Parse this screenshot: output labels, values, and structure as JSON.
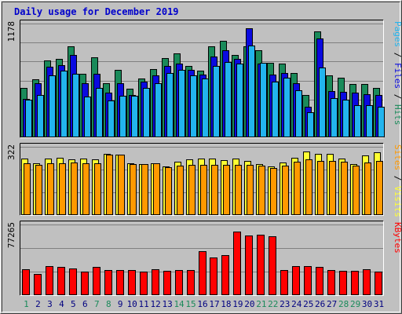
{
  "title": "Daily usage for December 2019",
  "colors": {
    "hits": "#1a8a5a",
    "files": "#0a0ae0",
    "pages": "#22b4ee",
    "visits": "#ffff33",
    "sites": "#ff9900",
    "kbytes": "#ff0000",
    "title": "#0000cc",
    "weekend_label": "#1a8a5a",
    "weekday_label": "#000080",
    "background": "#c0c0c0",
    "plot_bg": "#c0c0c0"
  },
  "x_labels": [
    {
      "day": "1",
      "weekend": true
    },
    {
      "day": "2",
      "weekend": false
    },
    {
      "day": "3",
      "weekend": false
    },
    {
      "day": "4",
      "weekend": false
    },
    {
      "day": "5",
      "weekend": false
    },
    {
      "day": "6",
      "weekend": false
    },
    {
      "day": "7",
      "weekend": true
    },
    {
      "day": "8",
      "weekend": true
    },
    {
      "day": "9",
      "weekend": false
    },
    {
      "day": "10",
      "weekend": false
    },
    {
      "day": "11",
      "weekend": false
    },
    {
      "day": "12",
      "weekend": false
    },
    {
      "day": "13",
      "weekend": false
    },
    {
      "day": "14",
      "weekend": true
    },
    {
      "day": "15",
      "weekend": true
    },
    {
      "day": "16",
      "weekend": false
    },
    {
      "day": "17",
      "weekend": false
    },
    {
      "day": "18",
      "weekend": false
    },
    {
      "day": "19",
      "weekend": false
    },
    {
      "day": "20",
      "weekend": false
    },
    {
      "day": "21",
      "weekend": true
    },
    {
      "day": "22",
      "weekend": true
    },
    {
      "day": "23",
      "weekend": false
    },
    {
      "day": "24",
      "weekend": false
    },
    {
      "day": "25",
      "weekend": false
    },
    {
      "day": "26",
      "weekend": false
    },
    {
      "day": "27",
      "weekend": false
    },
    {
      "day": "28",
      "weekend": true
    },
    {
      "day": "29",
      "weekend": true
    },
    {
      "day": "30",
      "weekend": false
    },
    {
      "day": "31",
      "weekend": false
    }
  ],
  "chart_data": [
    {
      "type": "bar",
      "panel": "hits-files-pages",
      "ymax_label": "1178",
      "ylim": [
        0,
        1178
      ],
      "grid": true,
      "legend": [
        {
          "text": "Pages",
          "color_key": "pages"
        },
        {
          "text": " / ",
          "color_key": null
        },
        {
          "text": "Files",
          "color_key": "files"
        },
        {
          "text": " / ",
          "color_key": null
        },
        {
          "text": "Hits",
          "color_key": "hits"
        }
      ],
      "series": [
        {
          "name": "Hits",
          "color_key": "hits",
          "values": [
            510,
            600,
            800,
            810,
            940,
            660,
            830,
            560,
            700,
            500,
            610,
            710,
            820,
            870,
            740,
            690,
            940,
            1000,
            850,
            940,
            900,
            770,
            760,
            670,
            440,
            1100,
            640,
            620,
            550,
            550,
            510
          ]
        },
        {
          "name": "Files",
          "color_key": "files",
          "values": [
            400,
            560,
            730,
            750,
            850,
            560,
            660,
            460,
            560,
            440,
            580,
            640,
            740,
            760,
            700,
            650,
            840,
            900,
            810,
            1130,
            760,
            650,
            670,
            560,
            320,
            1020,
            480,
            470,
            460,
            450,
            440
          ]
        },
        {
          "name": "Pages",
          "color_key": "pages",
          "values": [
            390,
            440,
            640,
            690,
            660,
            420,
            510,
            380,
            430,
            430,
            510,
            560,
            670,
            700,
            640,
            610,
            740,
            780,
            760,
            950,
            770,
            580,
            620,
            490,
            260,
            720,
            410,
            390,
            330,
            330,
            320
          ]
        }
      ]
    },
    {
      "type": "bar",
      "panel": "visits-sites",
      "ymax_label": "322",
      "ylim": [
        0,
        322
      ],
      "grid": true,
      "legend": [
        {
          "text": "Sites",
          "color_key": "sites"
        },
        {
          "text": " / ",
          "color_key": null
        },
        {
          "text": "Visits",
          "color_key": "visits"
        }
      ],
      "series": [
        {
          "name": "Visits",
          "color_key": "visits",
          "values": [
            265,
            245,
            265,
            270,
            262,
            268,
            262,
            288,
            285,
            245,
            242,
            245,
            228,
            252,
            262,
            265,
            265,
            258,
            265,
            255,
            242,
            228,
            248,
            270,
            298,
            290,
            290,
            268,
            242,
            282,
            295
          ]
        },
        {
          "name": "Sites",
          "color_key": "sites",
          "values": [
            245,
            238,
            245,
            245,
            248,
            245,
            245,
            285,
            285,
            242,
            242,
            245,
            225,
            232,
            238,
            238,
            238,
            238,
            238,
            238,
            232,
            222,
            235,
            250,
            262,
            255,
            255,
            250,
            232,
            248,
            255
          ]
        }
      ]
    },
    {
      "type": "bar",
      "panel": "kbytes",
      "ymax_label": "77265",
      "ylim": [
        0,
        77265
      ],
      "grid": true,
      "legend": [
        {
          "text": "KBytes",
          "color_key": "kbytes"
        }
      ],
      "series": [
        {
          "name": "KBytes",
          "color_key": "kbytes",
          "values": [
            28500,
            23500,
            31500,
            31000,
            29000,
            26000,
            30500,
            27500,
            27500,
            27500,
            25500,
            28500,
            26500,
            27800,
            27800,
            48500,
            41500,
            44000,
            69800,
            65200,
            66500,
            64500,
            27500,
            32000,
            32000,
            31000,
            27500,
            26500,
            26500,
            28000,
            25500
          ]
        }
      ]
    }
  ]
}
